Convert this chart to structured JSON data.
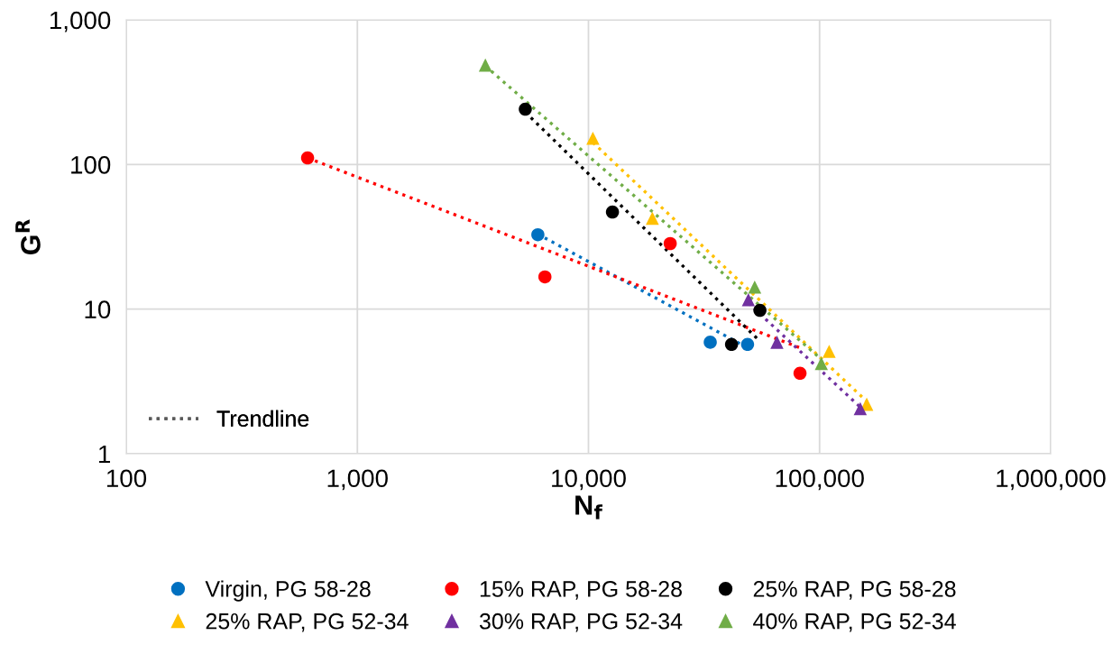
{
  "chart_data": {
    "type": "scatter",
    "xlabel": "N$_{f}$",
    "ylabel": "G$^{R}$",
    "log": "xy",
    "grid": true,
    "legend": "bottom",
    "xlim": [
      100,
      1000000
    ],
    "ylim": [
      1,
      1000
    ],
    "xticks": [
      {
        "value": 100,
        "label": "100"
      },
      {
        "value": 1000,
        "label": "1,000"
      },
      {
        "value": 10000,
        "label": "10,000"
      },
      {
        "value": 100000,
        "label": "100,000"
      },
      {
        "value": 1000000,
        "label": "1,000,000"
      }
    ],
    "yticks": [
      1,
      10,
      100,
      {
        "value": 1000,
        "label": "1,000"
      }
    ],
    "annotations": [
      "Trendline"
    ],
    "series": [
      {
        "name": "Virgin, PG 58-28",
        "color": "#0070c0",
        "marker": "circle",
        "x": [
          6040,
          33650,
          48800
        ],
        "values": [
          32.7,
          5.9,
          5.7
        ]
      },
      {
        "name": "15% RAP, PG 58-28",
        "color": "#ff0000",
        "marker": "circle",
        "x": [
          609,
          6480,
          22580,
          82300
        ],
        "values": [
          111,
          16.7,
          28.4,
          3.6
        ]
      },
      {
        "name": "25% RAP, PG 58-28",
        "color": "#000000",
        "marker": "circle",
        "x": [
          5330,
          12700,
          55200,
          41600
        ],
        "values": [
          241,
          46.9,
          9.8,
          5.7
        ]
      },
      {
        "name": "25% RAP, PG 52-34",
        "color": "#ffc000",
        "marker": "triangle",
        "x": [
          10450,
          18900,
          110000,
          160000
        ],
        "values": [
          152,
          42.5,
          5.1,
          2.2
        ]
      },
      {
        "name": "30% RAP, PG 52-34",
        "color": "#7030a0",
        "marker": "triangle",
        "x": [
          49200,
          65400,
          150000
        ],
        "values": [
          11.6,
          5.9,
          2.05
        ]
      },
      {
        "name": "40% RAP, PG 52-34",
        "color": "#70ad47",
        "marker": "triangle",
        "x": [
          3580,
          52400,
          101800
        ],
        "values": [
          487,
          14.2,
          4.2
        ]
      },
      {
        "type": "line",
        "line_style": "dotted",
        "marker": "none",
        "color": "#0070c0",
        "x": [
          6040,
          48800
        ],
        "values": [
          33,
          5.4
        ]
      },
      {
        "type": "line",
        "line_style": "dotted",
        "marker": "none",
        "color": "#ff0000",
        "x": [
          609,
          82300
        ],
        "values": [
          111,
          5.4
        ]
      },
      {
        "type": "line",
        "line_style": "dotted",
        "marker": "none",
        "color": "#000000",
        "x": [
          5330,
          55200
        ],
        "values": [
          230,
          6.0
        ]
      },
      {
        "type": "line",
        "line_style": "dotted",
        "marker": "none",
        "color": "#ffc000",
        "x": [
          10450,
          160000
        ],
        "values": [
          142,
          2.3
        ]
      },
      {
        "type": "line",
        "line_style": "dotted",
        "marker": "none",
        "color": "#7030a0",
        "x": [
          49200,
          150000
        ],
        "values": [
          11,
          2.1
        ]
      },
      {
        "type": "line",
        "line_style": "dotted",
        "marker": "none",
        "color": "#70ad47",
        "x": [
          3580,
          101800
        ],
        "values": [
          480,
          4.5
        ]
      }
    ]
  }
}
